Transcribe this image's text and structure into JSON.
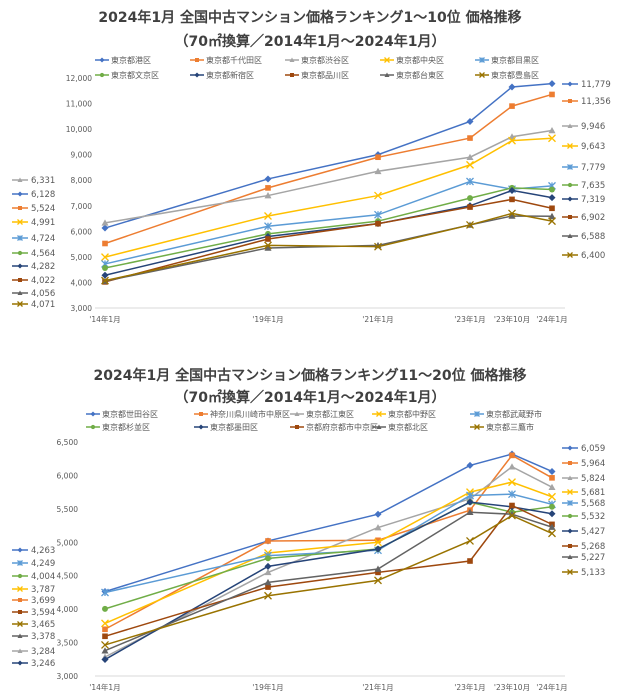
{
  "colors": [
    "#4472C4",
    "#ED7D31",
    "#A5A5A5",
    "#FFC000",
    "#5B9BD5",
    "#70AD47",
    "#264478",
    "#9E480E",
    "#636363",
    "#997300"
  ],
  "markers": [
    "diamond",
    "square",
    "triangle",
    "x",
    "star",
    "circle",
    "diamond",
    "square",
    "triangle",
    "x"
  ],
  "chart_data": [
    {
      "type": "line",
      "title": "2024年1月 全国中古マンション価格ランキング1～10位 価格推移",
      "subtitle": "（70㎡換算／2014年1月～2024年1月）",
      "categories": [
        "'14年1月",
        "'19年1月",
        "'21年1月",
        "'23年1月",
        "'23年10月",
        "'24年1月"
      ],
      "ylim": [
        3000,
        12000
      ],
      "yticks": [
        "3,000",
        "4,000",
        "5,000",
        "6,000",
        "7,000",
        "8,000",
        "9,000",
        "10,000",
        "11,000",
        "12,000"
      ],
      "grid": false,
      "legend": "top",
      "series": [
        {
          "name": "東京都港区",
          "values": [
            6128,
            8050,
            9000,
            10300,
            11650,
            11779
          ],
          "start_label": "6,128",
          "end_label": "11,779"
        },
        {
          "name": "東京都千代田区",
          "values": [
            5524,
            7700,
            8900,
            9650,
            10900,
            11356
          ],
          "start_label": "5,524",
          "end_label": "11,356"
        },
        {
          "name": "東京都渋谷区",
          "values": [
            6331,
            7400,
            8350,
            8900,
            9700,
            9946
          ],
          "start_label": "6,331",
          "end_label": "9,946"
        },
        {
          "name": "東京都中央区",
          "values": [
            4991,
            6600,
            7400,
            8600,
            9550,
            9643
          ],
          "start_label": "4,991",
          "end_label": "9,643"
        },
        {
          "name": "東京都目黒区",
          "values": [
            4724,
            6200,
            6650,
            7950,
            7650,
            7779
          ],
          "start_label": "4,724",
          "end_label": "7,779"
        },
        {
          "name": "東京都文京区",
          "values": [
            4564,
            5900,
            6400,
            7300,
            7700,
            7635
          ],
          "start_label": "4,564",
          "end_label": "7,635"
        },
        {
          "name": "東京都新宿区",
          "values": [
            4282,
            5800,
            6300,
            7000,
            7600,
            7319
          ],
          "start_label": "4,282",
          "end_label": "7,319"
        },
        {
          "name": "東京都品川区",
          "values": [
            4022,
            5700,
            6300,
            6950,
            7250,
            6902
          ],
          "start_label": "4,022",
          "end_label": "6,902"
        },
        {
          "name": "東京都台東区",
          "values": [
            4056,
            5350,
            5450,
            6250,
            6600,
            6588
          ],
          "start_label": "4,056",
          "end_label": "6,588"
        },
        {
          "name": "東京都豊島区",
          "values": [
            4071,
            5450,
            5400,
            6250,
            6700,
            6400
          ],
          "start_label": "4,071",
          "end_label": "6,400"
        }
      ]
    },
    {
      "type": "line",
      "title": "2024年1月 全国中古マンション価格ランキング11～20位 価格推移",
      "subtitle": "（70㎡換算／2014年1月～2024年1月）",
      "categories": [
        "'14年1月",
        "'19年1月",
        "'21年1月",
        "'23年1月",
        "'23年10月",
        "'24年1月"
      ],
      "ylim": [
        3000,
        6500
      ],
      "yticks": [
        "3,000",
        "3,500",
        "4,000",
        "4,500",
        "5,000",
        "5,500",
        "6,000",
        "6,500"
      ],
      "grid": false,
      "legend": "top",
      "series": [
        {
          "name": "東京都世田谷区",
          "values": [
            4263,
            5020,
            5420,
            6150,
            6320,
            6059
          ],
          "start_label": "4,263",
          "end_label": "6,059"
        },
        {
          "name": "神奈川県川崎市中原区",
          "values": [
            3699,
            5020,
            5030,
            5480,
            6300,
            5964
          ],
          "start_label": "3,699",
          "end_label": "5,964"
        },
        {
          "name": "東京都江東区",
          "values": [
            3284,
            4550,
            5220,
            5650,
            6130,
            5824
          ],
          "start_label": "3,284",
          "end_label": "5,824"
        },
        {
          "name": "東京都中野区",
          "values": [
            3787,
            4840,
            5000,
            5750,
            5900,
            5681
          ],
          "start_label": "3,787",
          "end_label": "5,681"
        },
        {
          "name": "東京都武蔵野市",
          "values": [
            4249,
            4800,
            4880,
            5700,
            5720,
            5568
          ],
          "start_label": "4,249",
          "end_label": "5,568"
        },
        {
          "name": "東京都杉並区",
          "values": [
            4004,
            4760,
            4900,
            5600,
            5450,
            5532
          ],
          "start_label": "4,004",
          "end_label": "5,532"
        },
        {
          "name": "東京都墨田区",
          "values": [
            3246,
            4640,
            4900,
            5600,
            5530,
            5427
          ],
          "start_label": "3,246",
          "end_label": "5,427"
        },
        {
          "name": "京都府京都市中京区",
          "values": [
            3594,
            4330,
            4550,
            4720,
            5550,
            5268
          ],
          "start_label": "3,594",
          "end_label": "5,268"
        },
        {
          "name": "東京都北区",
          "values": [
            3378,
            4400,
            4600,
            5450,
            5420,
            5227
          ],
          "start_label": "3,378",
          "end_label": "5,227"
        },
        {
          "name": "東京都三鷹市",
          "values": [
            3465,
            4200,
            4430,
            5020,
            5400,
            5133
          ],
          "start_label": "3,465",
          "end_label": "5,133"
        }
      ]
    }
  ]
}
